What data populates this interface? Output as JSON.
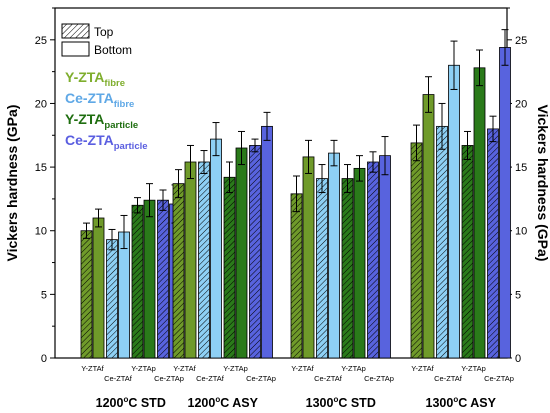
{
  "chart_data": {
    "type": "bar",
    "ylabel": "Vickers hardness (GPa)",
    "ylim": [
      0,
      27.5
    ],
    "yticks": [
      0,
      5,
      10,
      15,
      20,
      25
    ],
    "grid": false,
    "legend_position": "top-left",
    "legend_entries": [
      {
        "label": "Top",
        "style": "hatched"
      },
      {
        "label": "Bottom",
        "style": "open"
      }
    ],
    "series_labels": [
      {
        "main": "Y-ZTA",
        "sub": "fibre",
        "color": "#7fae2d"
      },
      {
        "main": "Ce-ZTA",
        "sub": "fibre",
        "color": "#5fa8e6"
      },
      {
        "main": "Y-ZTA",
        "sub": "particle",
        "color": "#1f6e10"
      },
      {
        "main": "Ce-ZTA",
        "sub": "particle",
        "color": "#5a5ee0"
      }
    ],
    "materials": [
      {
        "key": "Y-ZTAf",
        "color": "#6f9a2a"
      },
      {
        "key": "Ce-ZTAf",
        "color": "#8ed0f5"
      },
      {
        "key": "Y-ZTAp",
        "color": "#2a7a1a"
      },
      {
        "key": "Ce-ZTAp",
        "color": "#5863de"
      }
    ],
    "groups": [
      {
        "name": "1200°C STD",
        "name_parts": [
          "1200",
          "o",
          "C STD"
        ],
        "bar_labels": [
          "Y-ZTAf",
          "Ce-ZTAf",
          "Y-ZTAp",
          "Ce-ZTAp"
        ],
        "top": [
          {
            "value": 10.0,
            "error": 0.6
          },
          {
            "value": 9.3,
            "error": 0.8
          },
          {
            "value": 12.0,
            "error": 0.6
          },
          {
            "value": 12.4,
            "error": 0.8
          }
        ],
        "bottom": [
          {
            "value": 11.0,
            "error": 0.7
          },
          {
            "value": 9.9,
            "error": 1.3
          },
          {
            "value": 12.4,
            "error": 1.3
          },
          {
            "value": 12.1,
            "error": 1.5
          }
        ]
      },
      {
        "name": "1200°C ASY",
        "name_parts": [
          "1200",
          "o",
          "C ASY"
        ],
        "bar_labels": [
          "Y-ZTAf",
          "Ce-ZTAf",
          "Y-ZTAp",
          "Ce-ZTAp"
        ],
        "top": [
          {
            "value": 13.7,
            "error": 1.1
          },
          {
            "value": 15.4,
            "error": 0.9
          },
          {
            "value": 14.2,
            "error": 1.2
          },
          {
            "value": 16.7,
            "error": 0.5
          }
        ],
        "bottom": [
          {
            "value": 15.4,
            "error": 1.3
          },
          {
            "value": 17.2,
            "error": 1.3
          },
          {
            "value": 16.5,
            "error": 1.3
          },
          {
            "value": 18.2,
            "error": 1.1
          }
        ]
      },
      {
        "name": "1300°C STD",
        "name_parts": [
          "1300",
          "o",
          "C STD"
        ],
        "bar_labels": [
          "Y-ZTAf",
          "Ce-ZTAf",
          "Y-ZTAp",
          "Ce-ZTAp"
        ],
        "top": [
          {
            "value": 12.9,
            "error": 1.4
          },
          {
            "value": 14.1,
            "error": 1.1
          },
          {
            "value": 14.1,
            "error": 1.1
          },
          {
            "value": 15.4,
            "error": 0.8
          }
        ],
        "bottom": [
          {
            "value": 15.8,
            "error": 1.3
          },
          {
            "value": 16.1,
            "error": 1.0
          },
          {
            "value": 14.9,
            "error": 1.0
          },
          {
            "value": 15.9,
            "error": 1.5
          }
        ]
      },
      {
        "name": "1300°C ASY",
        "name_parts": [
          "1300",
          "o",
          "C ASY"
        ],
        "bar_labels": [
          "Y-ZTAf",
          "Ce-ZTAf",
          "Y-ZTAp",
          "Ce-ZTAp"
        ],
        "top": [
          {
            "value": 16.9,
            "error": 1.4
          },
          {
            "value": 18.2,
            "error": 1.8
          },
          {
            "value": 16.7,
            "error": 1.1
          },
          {
            "value": 18.0,
            "error": 1.0
          }
        ],
        "bottom": [
          {
            "value": 20.7,
            "error": 1.4
          },
          {
            "value": 23.0,
            "error": 1.9
          },
          {
            "value": 22.8,
            "error": 1.4
          },
          {
            "value": 24.4,
            "error": 1.4
          }
        ]
      }
    ]
  }
}
